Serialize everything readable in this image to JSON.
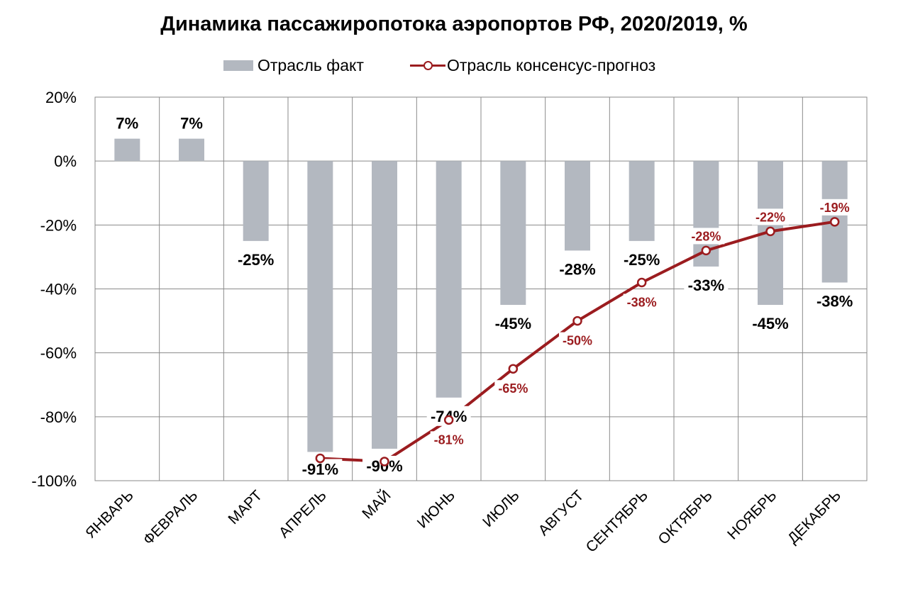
{
  "chart_data": {
    "type": "bar",
    "title": "Динамика пассажиропотока аэропортов РФ, 2020/2019, %",
    "categories": [
      "ЯНВАРЬ",
      "ФЕВРАЛЬ",
      "МАРТ",
      "АПРЕЛЬ",
      "МАЙ",
      "ИЮНЬ",
      "ИЮЛЬ",
      "АВГУСТ",
      "СЕНТЯБРЬ",
      "ОКТЯБРЬ",
      "НОЯБРЬ",
      "ДЕКАБРЬ"
    ],
    "ylim": [
      -100,
      20
    ],
    "yticks": [
      20,
      0,
      -20,
      -40,
      -60,
      -80,
      -100
    ],
    "ytick_labels": [
      "20%",
      "0%",
      "-20%",
      "-40%",
      "-60%",
      "-80%",
      "-100%"
    ],
    "grid": true,
    "legend_position": "top-center",
    "series": [
      {
        "name": "Отрасль факт",
        "type": "bar",
        "color": "#b3b8c0",
        "values": [
          7,
          7,
          -25,
          -91,
          -90,
          -74,
          -45,
          -28,
          -25,
          -33,
          -45,
          -38
        ],
        "labels": [
          "7%",
          "7%",
          "-25%",
          "-91%",
          "-90%",
          "-74%",
          "-45%",
          "-28%",
          "-25%",
          "-33%",
          "-45%",
          "-38%"
        ]
      },
      {
        "name": "Отрасль консенсус-прогноз",
        "type": "line",
        "color": "#9b1c1f",
        "values": [
          null,
          null,
          null,
          -93,
          -94,
          -81,
          -65,
          -50,
          -38,
          -28,
          -22,
          -19
        ],
        "labels": [
          "",
          "",
          "",
          "",
          "",
          "-81%",
          "-65%",
          "-50%",
          "-38%",
          "-28%",
          "-22%",
          "-19%"
        ]
      }
    ]
  }
}
